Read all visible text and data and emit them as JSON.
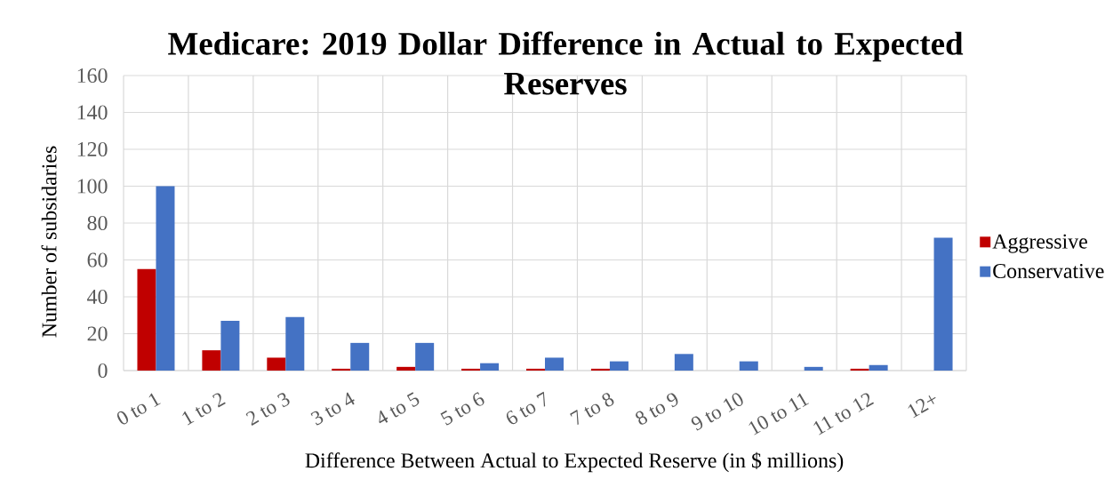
{
  "chart_data": {
    "type": "bar",
    "title": "Medicare: 2019 Dollar Difference in Actual to Expected Reserves",
    "xlabel": "Difference Between Actual to Expected Reserve (in $ millions)",
    "ylabel": "Number of subsidaries",
    "categories": [
      "0 to 1",
      "1 to 2",
      "2 to 3",
      "3 to 4",
      "4 to 5",
      "5 to 6",
      "6 to 7",
      "7 to 8",
      "8 to 9",
      "9 to 10",
      "10 to 11",
      "11 to 12",
      "12+"
    ],
    "series": [
      {
        "name": "Aggressive",
        "color": "#c00000",
        "values": [
          55,
          11,
          7,
          1,
          2,
          1,
          1,
          1,
          0,
          0,
          0,
          1,
          0
        ]
      },
      {
        "name": "Conservative",
        "color": "#4472c4",
        "values": [
          100,
          27,
          29,
          15,
          15,
          4,
          7,
          5,
          9,
          5,
          2,
          3,
          72
        ]
      }
    ],
    "ylim": [
      0,
      160
    ],
    "yticks": [
      0,
      20,
      40,
      60,
      80,
      100,
      120,
      140,
      160
    ],
    "grid": true,
    "legend": "right"
  }
}
